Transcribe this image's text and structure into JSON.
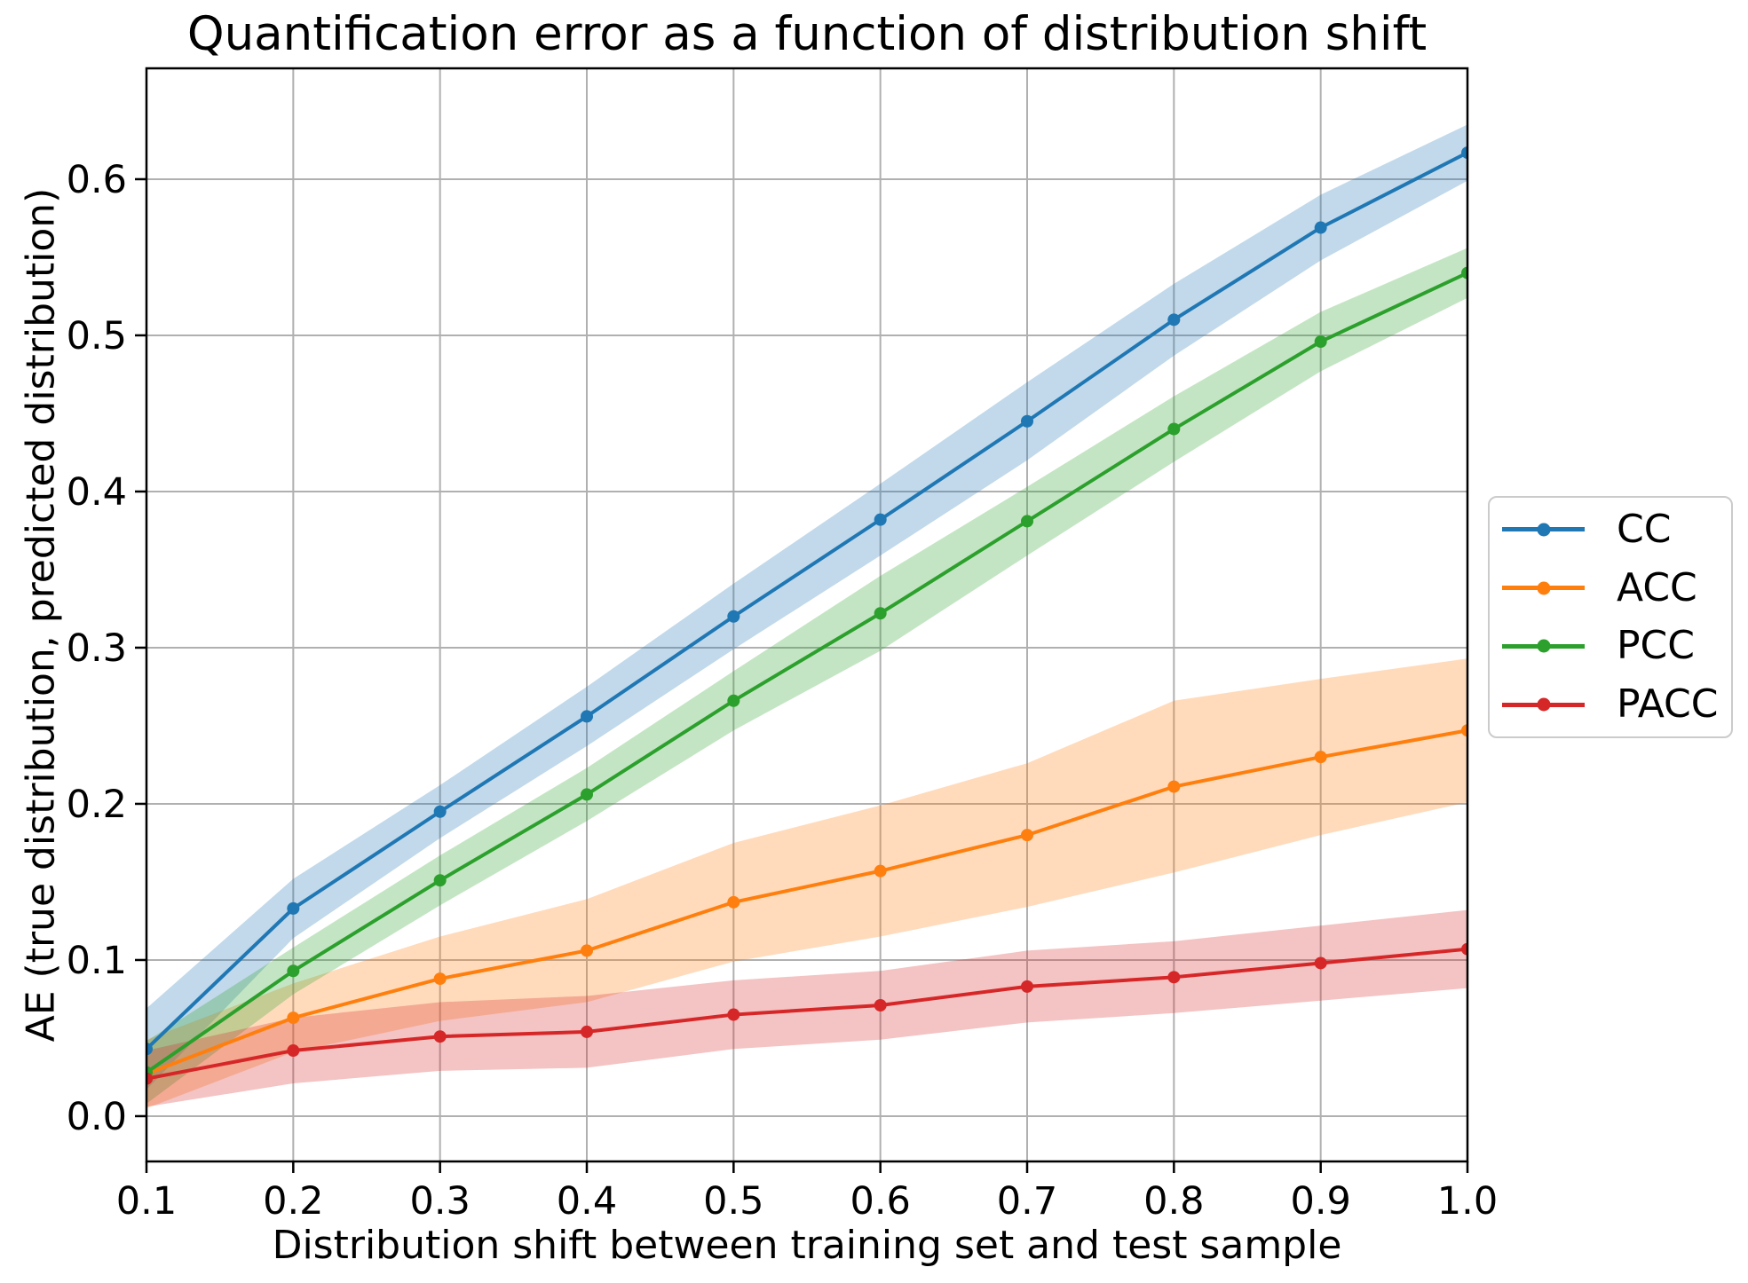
{
  "chart_data": {
    "type": "line",
    "title": "Quantification error as a function of distribution shift",
    "xlabel": "Distribution shift between training set and test sample",
    "ylabel": "AE (true distribution, predicted distribution)",
    "x": [
      0.1,
      0.2,
      0.3,
      0.4,
      0.5,
      0.6,
      0.7,
      0.8,
      0.9,
      1.0
    ],
    "x_tick_labels": [
      "0.1",
      "0.2",
      "0.3",
      "0.4",
      "0.5",
      "0.6",
      "0.7",
      "0.8",
      "0.9",
      "1.0"
    ],
    "y_tick_values": [
      0.0,
      0.1,
      0.2,
      0.3,
      0.4,
      0.5,
      0.6
    ],
    "y_tick_labels": [
      "0.0",
      "0.1",
      "0.2",
      "0.3",
      "0.4",
      "0.5",
      "0.6"
    ],
    "xlim": [
      0.1,
      1.0
    ],
    "ylim": [
      -0.029,
      0.671
    ],
    "grid": true,
    "grid_color": "#b0b0b0",
    "background": "#ffffff",
    "band_opacity": 0.28,
    "legend_position": "right-outside",
    "series": [
      {
        "name": "CC",
        "color": "#1f77b4",
        "values": [
          0.043,
          0.133,
          0.195,
          0.256,
          0.32,
          0.382,
          0.445,
          0.51,
          0.569,
          0.617
        ],
        "band_halfwidth": [
          0.026,
          0.019,
          0.017,
          0.019,
          0.021,
          0.023,
          0.025,
          0.023,
          0.021,
          0.018
        ]
      },
      {
        "name": "ACC",
        "color": "#ff7f0e",
        "values": [
          0.027,
          0.063,
          0.088,
          0.106,
          0.137,
          0.157,
          0.18,
          0.211,
          0.23,
          0.247
        ],
        "band_halfwidth": [
          0.022,
          0.022,
          0.027,
          0.033,
          0.038,
          0.042,
          0.046,
          0.055,
          0.05,
          0.046
        ]
      },
      {
        "name": "PCC",
        "color": "#2ca02c",
        "values": [
          0.028,
          0.093,
          0.151,
          0.206,
          0.266,
          0.322,
          0.381,
          0.44,
          0.496,
          0.54
        ],
        "band_halfwidth": [
          0.02,
          0.015,
          0.016,
          0.017,
          0.019,
          0.024,
          0.022,
          0.021,
          0.019,
          0.016
        ]
      },
      {
        "name": "PACC",
        "color": "#d62728",
        "values": [
          0.024,
          0.042,
          0.051,
          0.054,
          0.065,
          0.071,
          0.083,
          0.089,
          0.098,
          0.107
        ],
        "band_halfwidth": [
          0.018,
          0.021,
          0.022,
          0.023,
          0.022,
          0.022,
          0.023,
          0.023,
          0.024,
          0.025
        ]
      }
    ]
  }
}
